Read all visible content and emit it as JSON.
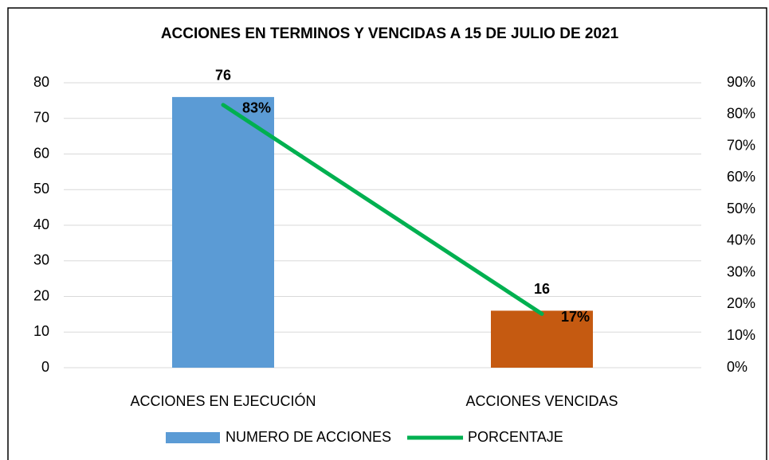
{
  "chart_data": {
    "type": "bar_line",
    "title": "ACCIONES EN TERMINOS Y VENCIDAS A 15 DE JULIO DE 2021",
    "categories": [
      "ACCIONES EN EJECUCIÓN",
      "ACCIONES VENCIDAS"
    ],
    "series": [
      {
        "name": "NUMERO DE ACCIONES",
        "type": "bar",
        "color": "#5b9bd5",
        "point_colors": [
          "#5b9bd5",
          "#c55a11"
        ],
        "values": [
          76,
          16
        ]
      },
      {
        "name": "PORCENTAJE",
        "type": "line",
        "axis": "y2",
        "color": "#00b050",
        "values": [
          83,
          17
        ],
        "value_labels": [
          "83%",
          "17%"
        ]
      }
    ],
    "ylim": [
      0,
      80
    ],
    "yticks": [
      0,
      10,
      20,
      30,
      40,
      50,
      60,
      70,
      80
    ],
    "y2lim": [
      0,
      90
    ],
    "y2ticks": [
      {
        "value": 0,
        "label": "0%"
      },
      {
        "value": 10,
        "label": "10%"
      },
      {
        "value": 20,
        "label": "20%"
      },
      {
        "value": 30,
        "label": "30%"
      },
      {
        "value": 40,
        "label": "40%"
      },
      {
        "value": 50,
        "label": "50%"
      },
      {
        "value": 60,
        "label": "60%"
      },
      {
        "value": 70,
        "label": "70%"
      },
      {
        "value": 80,
        "label": "80%"
      },
      {
        "value": 90,
        "label": "90%"
      }
    ],
    "grid": true,
    "legend": "bottom"
  }
}
